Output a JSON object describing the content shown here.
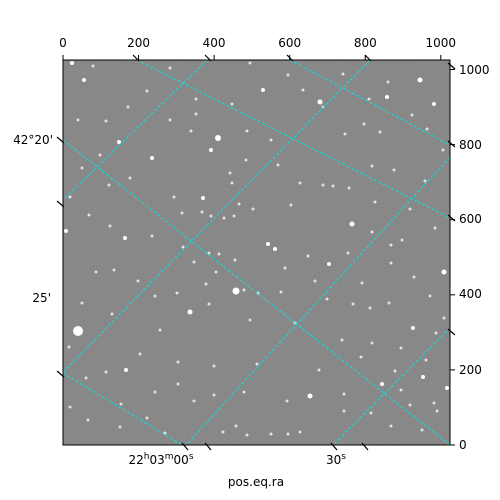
{
  "figure": {
    "xlabel": "pos.eq.ra",
    "pixel_x_ticks": [
      "0",
      "200",
      "400",
      "600",
      "800",
      "1000"
    ],
    "pixel_y_ticks": [
      "0",
      "200",
      "400",
      "600",
      "800",
      "1000"
    ],
    "ra_ticks": [
      {
        "h": "22",
        "m": "03",
        "s": "00"
      },
      {
        "s": "30"
      }
    ],
    "dec_ticks": [
      "42°20'",
      "25'"
    ],
    "ra_unit_h": "h",
    "ra_unit_m": "m",
    "ra_unit_s": "s",
    "colors": {
      "sky": "#808080",
      "grid": "#00e5e5",
      "stars": "#ffffff"
    }
  }
}
